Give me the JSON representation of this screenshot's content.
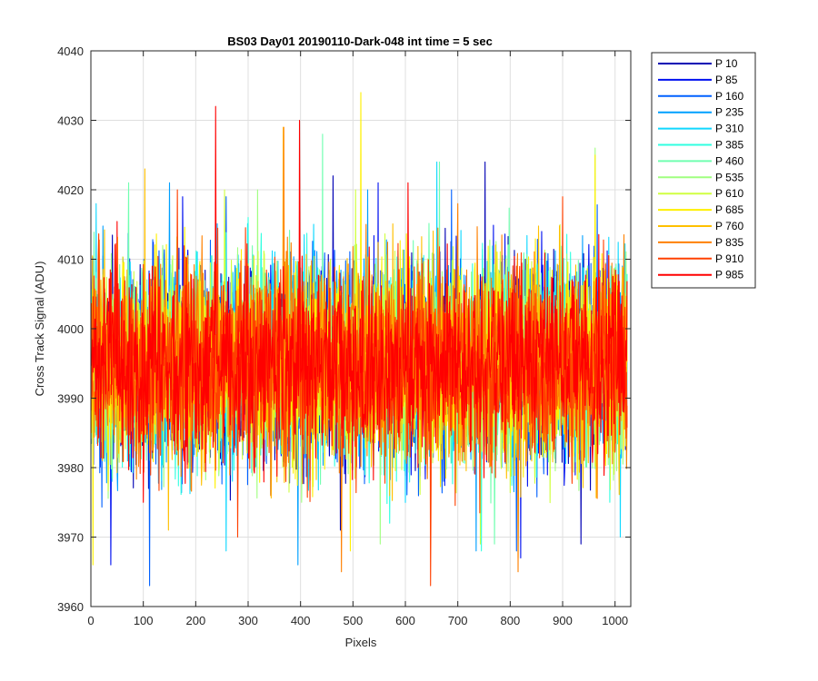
{
  "chart_data": {
    "type": "line",
    "title": "BS03 Day01 20190110-Dark-048 int time = 5 sec",
    "xlabel": "Pixels",
    "ylabel": "Cross Track Signal (ADU)",
    "xlim": [
      0,
      1030
    ],
    "ylim": [
      3960,
      4040
    ],
    "xticks": [
      0,
      100,
      200,
      300,
      400,
      500,
      600,
      700,
      800,
      900,
      1000
    ],
    "yticks": [
      3960,
      3970,
      3980,
      3990,
      4000,
      4010,
      4020,
      4030,
      4040
    ],
    "grid": true,
    "legend_position": "outside-top-right",
    "num_points": 1024,
    "noise_center": 3995,
    "noise_spread": 7,
    "series": [
      {
        "name": "P 10",
        "color": "#0000B4",
        "spikes": [
          [
            462,
            4022
          ],
          [
            752,
            4024
          ],
          [
            476,
            3971
          ],
          [
            935,
            3969
          ]
        ]
      },
      {
        "name": "P 85",
        "color": "#0010F0",
        "spikes": [
          [
            38,
            3966
          ],
          [
            175,
            4019
          ],
          [
            548,
            4021
          ],
          [
            820,
            3967
          ]
        ]
      },
      {
        "name": "P 160",
        "color": "#0060FF",
        "spikes": [
          [
            112,
            3963
          ],
          [
            258,
            4019
          ],
          [
            688,
            4020
          ],
          [
            812,
            3968
          ]
        ]
      },
      {
        "name": "P 235",
        "color": "#00A0FF",
        "spikes": [
          [
            150,
            4021
          ],
          [
            395,
            3966
          ],
          [
            528,
            4020
          ],
          [
            735,
            3968
          ]
        ]
      },
      {
        "name": "P 310",
        "color": "#10D8FF",
        "spikes": [
          [
            10,
            4018
          ],
          [
            258,
            3968
          ],
          [
            660,
            4024
          ],
          [
            1010,
            3970
          ]
        ]
      },
      {
        "name": "P 385",
        "color": "#30FFE0",
        "spikes": [
          [
            300,
            4016
          ],
          [
            570,
            3972
          ],
          [
            745,
            3968
          ],
          [
            990,
            3975
          ]
        ]
      },
      {
        "name": "P 460",
        "color": "#70FFB0",
        "spikes": [
          [
            72,
            4021
          ],
          [
            442,
            4028
          ],
          [
            665,
            4024
          ],
          [
            770,
            3969
          ]
        ]
      },
      {
        "name": "P 535",
        "color": "#A0FF80",
        "spikes": [
          [
            318,
            4020
          ],
          [
            552,
            3969
          ],
          [
            962,
            4026
          ],
          [
            402,
            3975
          ]
        ]
      },
      {
        "name": "P 610",
        "color": "#D0FF40",
        "spikes": [
          [
            255,
            4020
          ],
          [
            505,
            4020
          ],
          [
            743,
            3969
          ],
          [
            895,
            4015
          ]
        ]
      },
      {
        "name": "P 685",
        "color": "#FFF000",
        "spikes": [
          [
            4,
            3966
          ],
          [
            515,
            4034
          ],
          [
            495,
            3968
          ],
          [
            962,
            4025
          ]
        ]
      },
      {
        "name": "P 760",
        "color": "#FFC000",
        "spikes": [
          [
            103,
            4023
          ],
          [
            367,
            4029
          ],
          [
            815,
            3967
          ],
          [
            148,
            3971
          ]
        ]
      },
      {
        "name": "P 835",
        "color": "#FF8000",
        "spikes": [
          [
            368,
            4029
          ],
          [
            478,
            3965
          ],
          [
            815,
            3965
          ],
          [
            700,
            4018
          ]
        ]
      },
      {
        "name": "P 910",
        "color": "#FF4000",
        "spikes": [
          [
            648,
            3963
          ],
          [
            165,
            4020
          ],
          [
            280,
            3970
          ],
          [
            900,
            4019
          ]
        ]
      },
      {
        "name": "P 985",
        "color": "#FF0000",
        "spikes": [
          [
            238,
            4032
          ],
          [
            398,
            4030
          ],
          [
            605,
            4021
          ],
          [
            100,
            3975
          ]
        ]
      }
    ]
  }
}
